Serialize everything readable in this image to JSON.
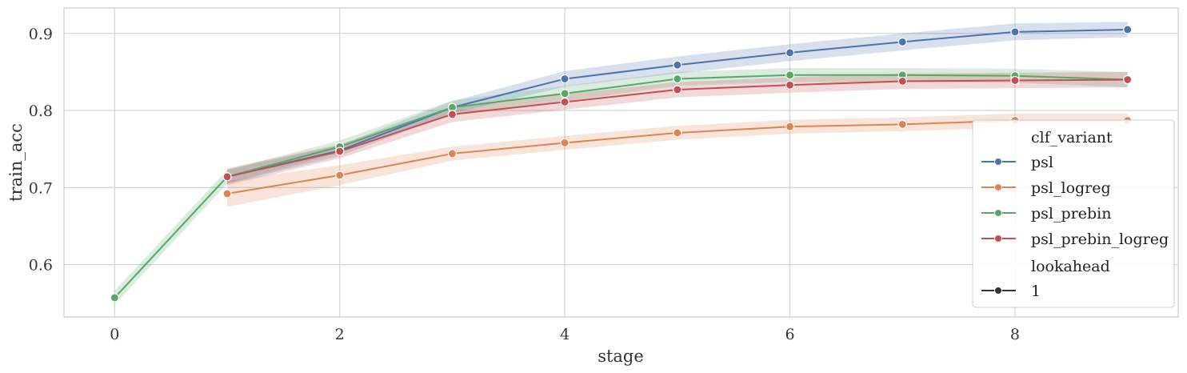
{
  "chart_data": {
    "type": "line",
    "xlabel": "stage",
    "ylabel": "train_acc",
    "xlim": [
      -0.45,
      9.45
    ],
    "ylim": [
      0.532,
      0.933
    ],
    "xticks": [
      0,
      2,
      4,
      6,
      8
    ],
    "xtick_labels": [
      "0",
      "2",
      "4",
      "6",
      "8"
    ],
    "yticks": [
      0.6,
      0.7,
      0.8,
      0.9
    ],
    "ytick_labels": [
      "0.6",
      "0.7",
      "0.8",
      "0.9"
    ],
    "grid": true,
    "legend": {
      "placement": "bottom-right",
      "hue_title": "clf_variant",
      "style_title": "lookahead",
      "style_entries": [
        "1"
      ]
    },
    "series": [
      {
        "name": "psl",
        "color": "#4c72b0",
        "x": [
          1,
          2,
          3,
          4,
          5,
          6,
          7,
          8,
          9
        ],
        "y": [
          0.714,
          0.748,
          0.804,
          0.841,
          0.859,
          0.875,
          0.889,
          0.902,
          0.905
        ],
        "lower": [
          0.705,
          0.741,
          0.796,
          0.831,
          0.848,
          0.864,
          0.878,
          0.891,
          0.895
        ],
        "upper": [
          0.723,
          0.755,
          0.812,
          0.851,
          0.87,
          0.886,
          0.9,
          0.913,
          0.915
        ]
      },
      {
        "name": "psl_logreg",
        "color": "#dd8452",
        "x": [
          1,
          2,
          3,
          4,
          5,
          6,
          7,
          8,
          9
        ],
        "y": [
          0.692,
          0.716,
          0.744,
          0.758,
          0.771,
          0.779,
          0.782,
          0.787,
          0.787
        ],
        "lower": [
          0.675,
          0.703,
          0.735,
          0.749,
          0.762,
          0.77,
          0.773,
          0.778,
          0.778
        ],
        "upper": [
          0.709,
          0.729,
          0.753,
          0.767,
          0.78,
          0.788,
          0.791,
          0.796,
          0.796
        ]
      },
      {
        "name": "psl_prebin",
        "color": "#55a868",
        "x": [
          0,
          1,
          2,
          3,
          4,
          5,
          6,
          7,
          8,
          9
        ],
        "y": [
          0.557,
          0.714,
          0.753,
          0.804,
          0.822,
          0.841,
          0.846,
          0.846,
          0.845,
          0.84
        ],
        "lower": [
          0.548,
          0.705,
          0.745,
          0.795,
          0.812,
          0.832,
          0.837,
          0.837,
          0.836,
          0.83
        ],
        "upper": [
          0.566,
          0.723,
          0.761,
          0.813,
          0.832,
          0.85,
          0.855,
          0.855,
          0.854,
          0.85
        ]
      },
      {
        "name": "psl_prebin_logreg",
        "color": "#c44e52",
        "x": [
          1,
          2,
          3,
          4,
          5,
          6,
          7,
          8,
          9
        ],
        "y": [
          0.714,
          0.747,
          0.795,
          0.811,
          0.827,
          0.833,
          0.838,
          0.839,
          0.84
        ],
        "lower": [
          0.703,
          0.738,
          0.785,
          0.801,
          0.817,
          0.823,
          0.828,
          0.829,
          0.83
        ],
        "upper": [
          0.725,
          0.756,
          0.805,
          0.821,
          0.837,
          0.843,
          0.848,
          0.849,
          0.85
        ]
      }
    ]
  }
}
